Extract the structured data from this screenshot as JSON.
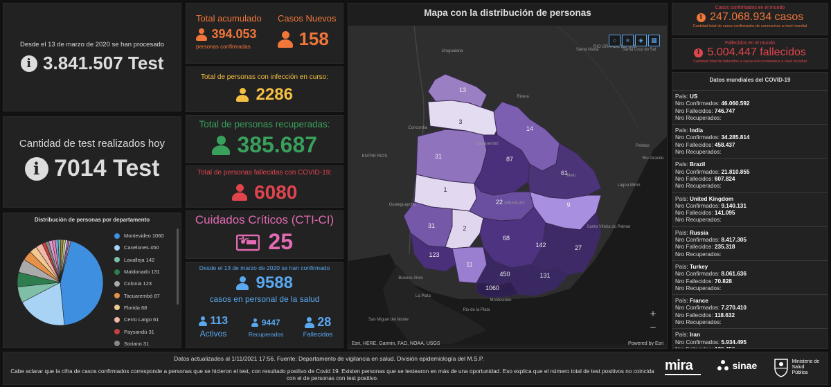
{
  "tests_total": {
    "desc": "Desde el 13 de marzo de 2020 se han procesado",
    "value": "3.841.507 Test"
  },
  "tests_today": {
    "title": "Cantidad de test realizados hoy",
    "value": "7014 Test"
  },
  "distribution": {
    "title": "Distribución de personas por departamento",
    "legend": [
      {
        "label": "Montevideo 1060",
        "color": "#3f8fe0"
      },
      {
        "label": "Canelones 450",
        "color": "#a9d3f5"
      },
      {
        "label": "Lavalleja 142",
        "color": "#7fbfa8"
      },
      {
        "label": "Maldonado 131",
        "color": "#2e7d4f"
      },
      {
        "label": "Colonia 123",
        "color": "#aaaaaa"
      },
      {
        "label": "Tacuarembó 87",
        "color": "#e69148"
      },
      {
        "label": "Florida 68",
        "color": "#f2c893"
      },
      {
        "label": "Cerro Largo 61",
        "color": "#f2b8a6"
      },
      {
        "label": "Paysandú 31",
        "color": "#c94040"
      },
      {
        "label": "Soriano 31",
        "color": "#888888"
      }
    ]
  },
  "total_acumulado": {
    "title": "Total acumulado",
    "value": "394.053",
    "sub": "personas confirmadas"
  },
  "casos_nuevos": {
    "title": "Casos Nuevos",
    "value": "158"
  },
  "en_curso": {
    "title": "Total de personas con infección en curso:",
    "value": "2286"
  },
  "recuperadas": {
    "title": "Total de personas recuperadas:",
    "value": "385.687"
  },
  "fallecidas": {
    "title": "Total de personas fallecidas con COVID-19:",
    "value": "6080"
  },
  "cti": {
    "title": "Cuidados Críticos (CTI-CI)",
    "value": "25"
  },
  "salud": {
    "desc": "Desde el 13 de marzo de 2020 se han confirmado",
    "value": "9588",
    "sub": "casos en personal de la salud",
    "activos_value": "113",
    "activos_label": "Activos",
    "recuperados_value": "9447",
    "recuperados_label": "Recuperados",
    "fallecidos_value": "28",
    "fallecidos_label": "Fallecidos"
  },
  "map": {
    "title": "Mapa con la distribución de personas",
    "attribution": "Esri, HERE, Garmin, FAO, NOAA, USGS",
    "powered": "Powered by Esri",
    "zoom_in": "+",
    "zoom_out": "−",
    "places": [
      "Uruguaiana",
      "Santa Maria",
      "RIO GRANDE DO SUL",
      "Santa Cruz do Sul",
      "Pelotas",
      "Rio Grande",
      "Concordia",
      "ENTRE RIOS",
      "Gualeguaychú",
      "Buenos Aires",
      "La Plata",
      "San Miguel del Monte",
      "Rio de la Plata",
      "Montevideo",
      "Tacuarembó",
      "Melo",
      "Rivera",
      "Santa Vitória do Palmar",
      "Lagoa Mirim",
      "URUGUAY"
    ],
    "department_values": [
      "13",
      "3",
      "14",
      "31",
      "87",
      "61",
      "1",
      "22",
      "9",
      "31",
      "2",
      "68",
      "142",
      "27",
      "123",
      "11",
      "450",
      "131",
      "1060"
    ]
  },
  "world_cases": {
    "label": "Casos confirmados en el mundo",
    "value": "247.068.934 casos",
    "sub": "Cantidad total de casos confirmados de coronavirus a nivel mundial"
  },
  "world_deaths": {
    "label": "Fallecidos en el mundo",
    "value": "5.004.447 fallecidos",
    "sub": "Cantidad total de fallecidos a causa del coronavirus a nivel mundial"
  },
  "world_list": {
    "title": "Datos mundiales del COVID-19",
    "label_pais": "País:",
    "label_conf": "Nro Confirmados:",
    "label_fall": "Nro Fallecidos:",
    "label_rec": "Nro Recuperados:",
    "entries": [
      {
        "pais": "US",
        "conf": "46.060.592",
        "fall": "746.747"
      },
      {
        "pais": "India",
        "conf": "34.285.814",
        "fall": "458.437"
      },
      {
        "pais": "Brazil",
        "conf": "21.810.855",
        "fall": "607.824"
      },
      {
        "pais": "United Kingdom",
        "conf": "9.140.131",
        "fall": "141.095"
      },
      {
        "pais": "Russia",
        "conf": "8.417.305",
        "fall": "235.318"
      },
      {
        "pais": "Turkey",
        "conf": "8.061.636",
        "fall": "70.828"
      },
      {
        "pais": "France",
        "conf": "7.270.410",
        "fall": "118.632"
      },
      {
        "pais": "Iran",
        "conf": "5.934.495",
        "fall": "126.456"
      }
    ]
  },
  "footer": {
    "updated": "Datos actualizados al 1/11/2021 17:56. Fuente: Departamento de vigilancia en salud. División epidemiología del M.S.P.",
    "note": "Cabe aclarar que la cifra de casos confirmados corresponde a personas que se hicieron el test, con resultado positivo de Covid 19. Existen personas que se testearon en más de una oportunidad. Eso explica que el número total de test positivos no coincida con el de personas con test positivo.",
    "logo_mira": "mira",
    "logo_sinae": "sinae",
    "logo_msp": "Ministerio de Salud Pública"
  }
}
